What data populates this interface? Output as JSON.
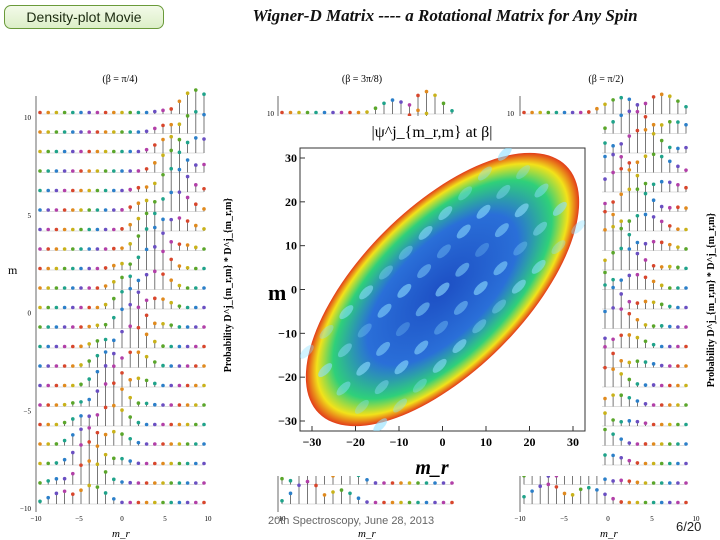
{
  "header": {
    "tag_label": "Density-plot Movie",
    "title": "Wigner-D Matrix ---- a Rotational Matrix for Any Spin"
  },
  "footer": {
    "text": "20th Spectroscopy, June 28, 2013",
    "page": "6/20"
  },
  "chart_data": [
    {
      "type": "stem",
      "title": "(β = π/4)",
      "ylabel": "m",
      "xlabel": "m_r",
      "xlim": [
        -10,
        10
      ],
      "ylim": [
        -10,
        10
      ],
      "xticks": [
        "−10",
        "−5",
        "0",
        "5",
        "10"
      ],
      "yticks": [
        "10",
        "5",
        "0",
        "−5",
        "−10"
      ],
      "side_label": "Probability  D^j_{m_r,m} * D^j_{m_r,m}"
    },
    {
      "type": "stem",
      "title": "(β = 3π/8)",
      "xlabel": "m_r",
      "ylim": [
        -10,
        10
      ],
      "yticks": [
        "10"
      ],
      "xticks": [
        "−10"
      ]
    },
    {
      "type": "stem",
      "title": "(β = π/2)",
      "xlabel": "m_r",
      "xlim": [
        -10,
        10
      ],
      "ylim": [
        -10,
        10
      ],
      "yticks": [
        "10"
      ],
      "xticks": [
        "−10",
        "−5",
        "0",
        "5",
        "10"
      ],
      "side_label": "Probability  D^j_{m_r,m} * D^j_{m_r,m}"
    },
    {
      "type": "heatmap",
      "title": "|ψ^j_{m_r,m} at β|",
      "xlabel": "m_r",
      "ylabel": "m",
      "xlim": [
        -30,
        30
      ],
      "ylim": [
        -30,
        30
      ],
      "xticks": [
        "−30",
        "−20",
        "−10",
        "0",
        "10",
        "20",
        "30"
      ],
      "yticks": [
        "30",
        "20",
        "10",
        "0",
        "−10",
        "−20",
        "−30"
      ]
    }
  ],
  "colors": {
    "stem": "#444444",
    "heat_low": "#1d4fc4",
    "heat_mid": "#2fd07a",
    "heat_high": "#f2e21a",
    "heat_edge": "#e23b1a",
    "tag_border": "#6a9a3a"
  }
}
